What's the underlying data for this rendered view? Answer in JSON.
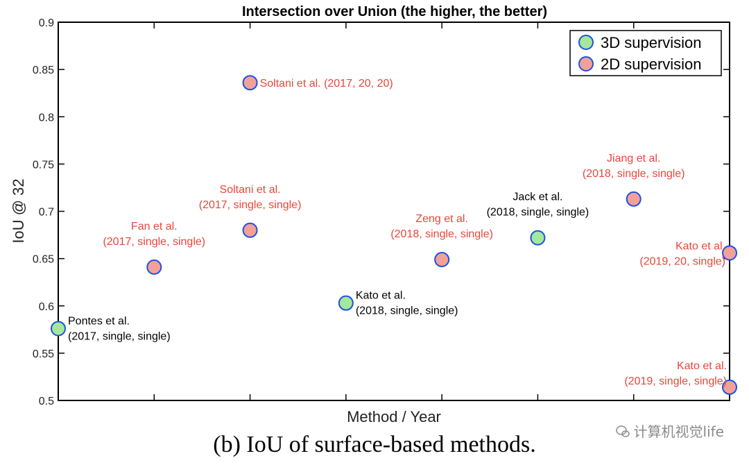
{
  "chart_data": {
    "type": "scatter",
    "title": "Intersection over Union (the higher, the better)",
    "xlabel": "Method / Year",
    "ylabel": "IoU @ 32",
    "ylim": [
      0.5,
      0.9
    ],
    "yticks": [
      "0.5",
      "0.55",
      "0.6",
      "0.65",
      "0.7",
      "0.75",
      "0.8",
      "0.85",
      "0.9"
    ],
    "xlim": [
      0,
      7
    ],
    "grid": false,
    "legend_position": "top-right",
    "legend": [
      {
        "name": "3D supervision",
        "color": "#a3e89c"
      },
      {
        "name": "2D supervision",
        "color": "#f2a09a"
      }
    ],
    "marker_edge_color": "#1f4fe0",
    "label_colors": {
      "3D supervision": "#000000",
      "2D supervision": "#e8463a"
    },
    "points": [
      {
        "x": 0,
        "y": 0.576,
        "group": "3D supervision",
        "label": [
          "Pontes et al.",
          "(2017, single, single)"
        ],
        "label_side": "right"
      },
      {
        "x": 1,
        "y": 0.641,
        "group": "2D supervision",
        "label": [
          "Fan et al.",
          "(2017, single, single)"
        ],
        "label_side": "above"
      },
      {
        "x": 2,
        "y": 0.836,
        "group": "2D supervision",
        "label": [
          "Soltani et al. (2017, 20, 20)"
        ],
        "label_side": "right"
      },
      {
        "x": 2,
        "y": 0.68,
        "group": "2D supervision",
        "label": [
          "Soltani et al.",
          "(2017, single, single)"
        ],
        "label_side": "above"
      },
      {
        "x": 3,
        "y": 0.603,
        "group": "3D supervision",
        "label": [
          "Kato et al.",
          "(2018, single, single)"
        ],
        "label_side": "right"
      },
      {
        "x": 4,
        "y": 0.649,
        "group": "2D supervision",
        "label": [
          "Zeng et al.",
          "(2018, single, single)"
        ],
        "label_side": "above"
      },
      {
        "x": 5,
        "y": 0.672,
        "group": "3D supervision",
        "label": [
          "Jack et al.",
          "(2018, single, single)"
        ],
        "label_side": "above"
      },
      {
        "x": 6,
        "y": 0.713,
        "group": "2D supervision",
        "label": [
          "Jiang et al.",
          "(2018, single, single)"
        ],
        "label_side": "above"
      },
      {
        "x": 7,
        "y": 0.656,
        "group": "2D supervision",
        "label": [
          "Kato et al.",
          "(2019, 20, single)"
        ],
        "label_side": "left"
      },
      {
        "x": 7,
        "y": 0.514,
        "group": "2D supervision",
        "label": [
          "Kato et al.",
          "(2019, single, single)"
        ],
        "label_side": "left-above"
      }
    ]
  },
  "caption": "(b) IoU of surface-based methods.",
  "watermark": "计算机视觉life"
}
